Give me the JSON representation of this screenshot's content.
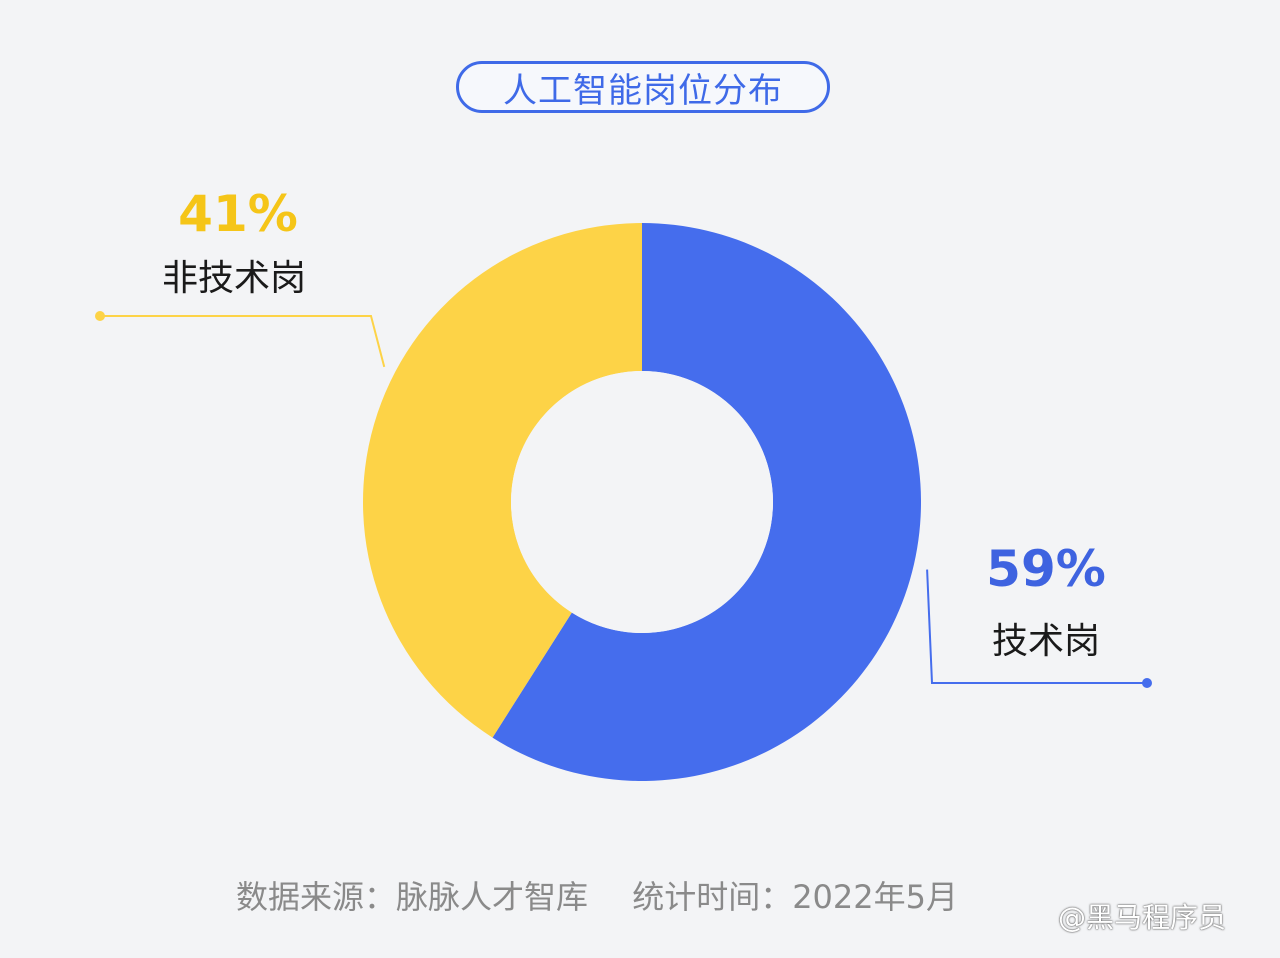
{
  "chart_data": {
    "type": "pie",
    "title": "人工智能岗位分布",
    "slices": [
      {
        "label": "技术岗",
        "value": 59,
        "display": "59%",
        "color": "#456ded"
      },
      {
        "label": "非技术岗",
        "value": 41,
        "display": "41%",
        "color": "#fdd347"
      }
    ],
    "donut": true
  },
  "footer": {
    "source": "数据来源：脉脉人才智库",
    "time": "统计时间：2022年5月"
  },
  "watermark": {
    "text": "@黑马程序员"
  },
  "colors": {
    "title_accent": "#3f6ae8",
    "blue_label": "#3e63e0",
    "yellow_label": "#f5c518",
    "background": "#f3f4f6"
  }
}
